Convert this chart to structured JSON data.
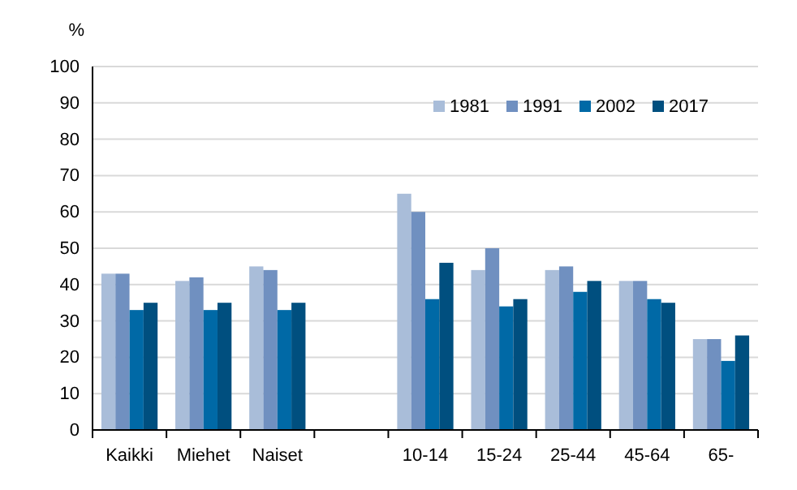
{
  "chart_data": {
    "type": "bar",
    "ylabel": "%",
    "categories": [
      "Kaikki",
      "Miehet",
      "Naiset",
      null,
      "10-14",
      "15-24",
      "25-44",
      "45-64",
      "65-"
    ],
    "series": [
      {
        "name": "1981",
        "color": "#a9bdd9",
        "values": [
          43,
          41,
          45,
          null,
          65,
          44,
          44,
          41,
          25
        ]
      },
      {
        "name": "1991",
        "color": "#7090c0",
        "values": [
          43,
          42,
          44,
          null,
          60,
          50,
          45,
          41,
          25
        ]
      },
      {
        "name": "2002",
        "color": "#0069a6",
        "values": [
          33,
          33,
          33,
          null,
          36,
          34,
          38,
          36,
          19
        ]
      },
      {
        "name": "2017",
        "color": "#004f7f",
        "values": [
          35,
          35,
          35,
          null,
          46,
          36,
          41,
          35,
          26
        ]
      }
    ],
    "ylim": [
      0,
      100
    ],
    "yticks": [
      0,
      10,
      20,
      30,
      40,
      50,
      60,
      70,
      80,
      90,
      100
    ],
    "grid": "y",
    "legend": "top right"
  }
}
